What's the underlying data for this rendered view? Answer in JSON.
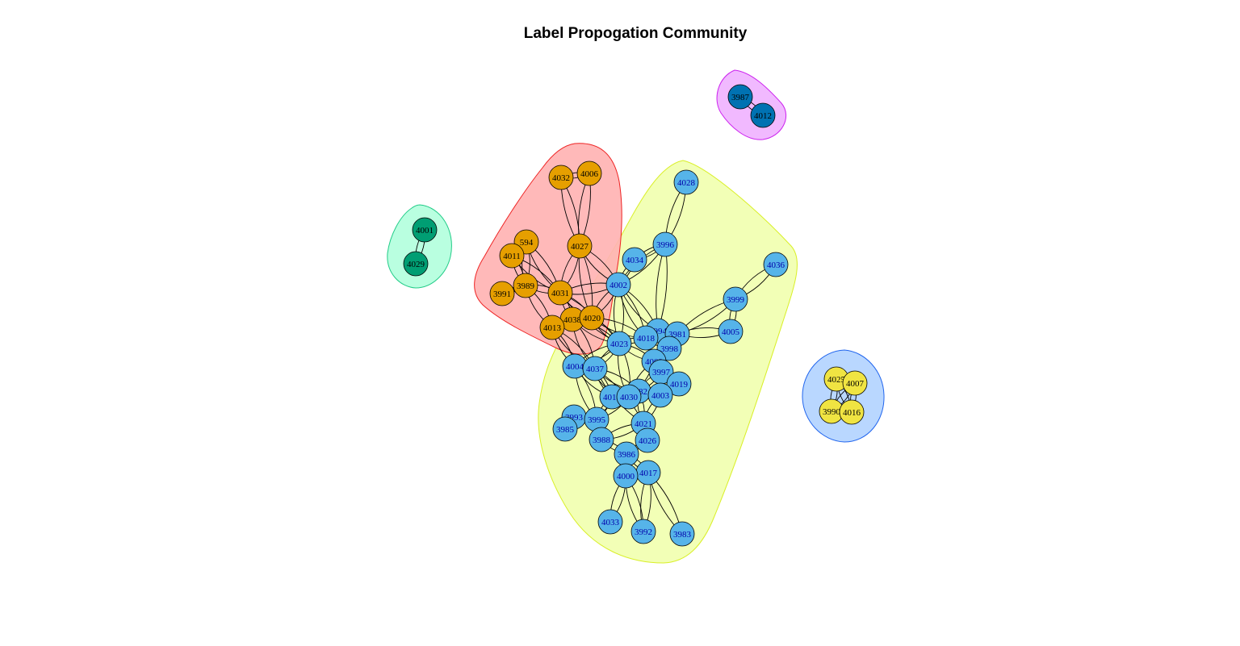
{
  "title": "Label Propogation Community",
  "communities": [
    {
      "id": "yellow",
      "hull_fill": "#f1ffb0",
      "hull_stroke": "#d9ef27",
      "node_fill": "#56b4e9",
      "label_color": "#0000aa",
      "nodes": [
        "4028",
        "3996",
        "4036",
        "4034",
        "4002",
        "3999",
        "4005",
        "3994",
        "3981",
        "4018",
        "4023",
        "3998",
        "4009",
        "3997",
        "4004",
        "4037",
        "4019",
        "3982",
        "4014",
        "4030",
        "4003",
        "3993",
        "3995",
        "4021",
        "3985",
        "3988",
        "4026",
        "3986",
        "4017",
        "4000",
        "4033",
        "3992",
        "3983"
      ]
    },
    {
      "id": "red",
      "hull_fill": "#ffb3b3",
      "hull_stroke": "#ee2222",
      "node_fill": "#e69f00",
      "label_color": "#000000",
      "nodes": [
        "4032",
        "4006",
        "594",
        "4011",
        "4027",
        "3991",
        "3989",
        "4031",
        "4038",
        "4020",
        "4013"
      ]
    },
    {
      "id": "green",
      "hull_fill": "#b3ffdd",
      "hull_stroke": "#22cc88",
      "node_fill": "#009e73",
      "label_color": "#000000",
      "nodes": [
        "4001",
        "4029"
      ]
    },
    {
      "id": "magenta",
      "hull_fill": "#f0b3ff",
      "hull_stroke": "#cc22ee",
      "node_fill": "#0072b2",
      "label_color": "#000000",
      "nodes": [
        "3987",
        "4012"
      ]
    },
    {
      "id": "blue",
      "hull_fill": "#b3d4ff",
      "hull_stroke": "#2266ee",
      "node_fill": "#f0e442",
      "label_color": "#000000",
      "nodes": [
        "4025",
        "4007",
        "3990",
        "4016"
      ]
    }
  ],
  "edges": [
    [
      "4028",
      "3996"
    ],
    [
      "3996",
      "4002"
    ],
    [
      "3996",
      "3994"
    ],
    [
      "4036",
      "3999"
    ],
    [
      "3999",
      "3981"
    ],
    [
      "3999",
      "4005"
    ],
    [
      "4005",
      "3981"
    ],
    [
      "4034",
      "4002"
    ],
    [
      "4034",
      "3996"
    ],
    [
      "4002",
      "4023"
    ],
    [
      "4002",
      "4018"
    ],
    [
      "4002",
      "4031"
    ],
    [
      "4002",
      "4020"
    ],
    [
      "4002",
      "3994"
    ],
    [
      "3994",
      "3981"
    ],
    [
      "3994",
      "4018"
    ],
    [
      "3981",
      "3998"
    ],
    [
      "4018",
      "4023"
    ],
    [
      "4023",
      "4009"
    ],
    [
      "4023",
      "4004"
    ],
    [
      "4023",
      "4037"
    ],
    [
      "4009",
      "3997"
    ],
    [
      "4009",
      "4019"
    ],
    [
      "3997",
      "3982"
    ],
    [
      "4019",
      "4003"
    ],
    [
      "4004",
      "4037"
    ],
    [
      "4037",
      "4014"
    ],
    [
      "4037",
      "3982"
    ],
    [
      "4014",
      "4030"
    ],
    [
      "4030",
      "3982"
    ],
    [
      "4030",
      "4003"
    ],
    [
      "4003",
      "4021"
    ],
    [
      "4014",
      "3995"
    ],
    [
      "3995",
      "3993"
    ],
    [
      "3993",
      "3985"
    ],
    [
      "3995",
      "3988"
    ],
    [
      "3988",
      "4021"
    ],
    [
      "4021",
      "4026"
    ],
    [
      "4026",
      "3986"
    ],
    [
      "3986",
      "4017"
    ],
    [
      "3986",
      "4000"
    ],
    [
      "4017",
      "4000"
    ],
    [
      "4000",
      "4033"
    ],
    [
      "4017",
      "3992"
    ],
    [
      "4017",
      "3983"
    ],
    [
      "4000",
      "3992"
    ],
    [
      "4004",
      "3995"
    ],
    [
      "4023",
      "4030"
    ],
    [
      "4009",
      "4030"
    ],
    [
      "4018",
      "3998"
    ],
    [
      "3998",
      "4009"
    ],
    [
      "4037",
      "4021"
    ],
    [
      "3982",
      "4021"
    ],
    [
      "3995",
      "4030"
    ],
    [
      "4014",
      "4004"
    ],
    [
      "3988",
      "3986"
    ],
    [
      "4032",
      "4027"
    ],
    [
      "4006",
      "4027"
    ],
    [
      "4032",
      "4006"
    ],
    [
      "594",
      "4011"
    ],
    [
      "594",
      "4031"
    ],
    [
      "594",
      "3989"
    ],
    [
      "4011",
      "3989"
    ],
    [
      "4011",
      "4031"
    ],
    [
      "3991",
      "3989"
    ],
    [
      "3989",
      "4031"
    ],
    [
      "4027",
      "4031"
    ],
    [
      "4027",
      "4020"
    ],
    [
      "4031",
      "4038"
    ],
    [
      "4031",
      "4020"
    ],
    [
      "4038",
      "4020"
    ],
    [
      "4038",
      "4013"
    ],
    [
      "4013",
      "4020"
    ],
    [
      "3989",
      "4013"
    ],
    [
      "4038",
      "4023"
    ],
    [
      "4020",
      "4023"
    ],
    [
      "4013",
      "4004"
    ],
    [
      "4038",
      "4037"
    ],
    [
      "4031",
      "4023"
    ],
    [
      "4013",
      "4037"
    ],
    [
      "4020",
      "4018"
    ],
    [
      "4027",
      "4002"
    ],
    [
      "4001",
      "4029"
    ],
    [
      "3987",
      "4012"
    ],
    [
      "4025",
      "4007"
    ],
    [
      "4025",
      "3990"
    ],
    [
      "4025",
      "4016"
    ],
    [
      "4007",
      "4016"
    ],
    [
      "4007",
      "3990"
    ],
    [
      "3990",
      "4016"
    ]
  ]
}
